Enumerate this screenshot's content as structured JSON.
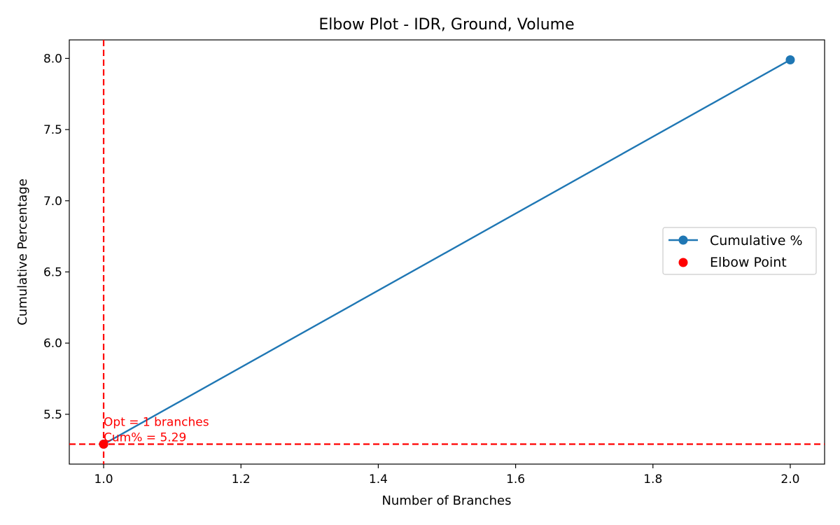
{
  "chart_data": {
    "type": "line",
    "title": "Elbow Plot - IDR, Ground, Volume",
    "xlabel": "Number of Branches",
    "ylabel": "Cumulative Percentage",
    "xlim": [
      0.95,
      2.05
    ],
    "ylim": [
      5.15,
      8.13
    ],
    "xticks": [
      "1.0",
      "1.2",
      "1.4",
      "1.6",
      "1.8",
      "2.0"
    ],
    "yticks": [
      "5.5",
      "6.0",
      "6.5",
      "7.0",
      "7.5",
      "8.0"
    ],
    "grid": false,
    "legend_position": "center-right",
    "series": [
      {
        "name": "Cumulative %",
        "color": "#1f77b4",
        "x": [
          1,
          2
        ],
        "y": [
          5.29,
          7.99
        ]
      }
    ],
    "elbow": {
      "name": "Elbow Point",
      "color": "#ff0000",
      "x": 1,
      "y": 5.29,
      "annotation_line1": "Opt = 1 branches",
      "annotation_line2": "Cum% = 5.29"
    }
  }
}
